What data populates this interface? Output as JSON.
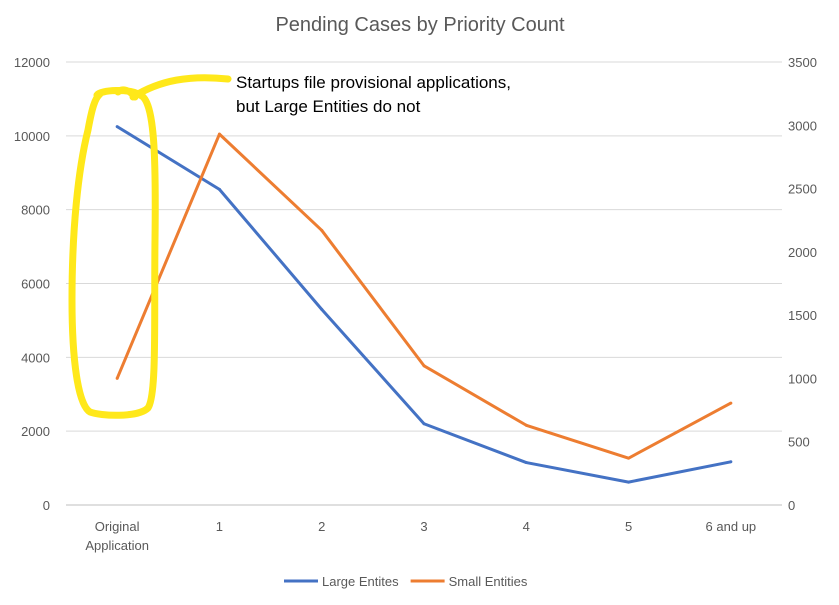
{
  "chart_data": {
    "type": "line",
    "title": "Pending Cases by Priority Count",
    "categories": [
      [
        "Original",
        "Application"
      ],
      [
        "1"
      ],
      [
        "2"
      ],
      [
        "3"
      ],
      [
        "4"
      ],
      [
        "5"
      ],
      [
        "6 and up"
      ]
    ],
    "y_left": {
      "range": [
        0,
        12000
      ],
      "ticks": [
        0,
        2000,
        4000,
        6000,
        8000,
        10000,
        12000
      ]
    },
    "y_right": {
      "range": [
        0,
        3500
      ],
      "ticks": [
        0,
        500,
        1000,
        1500,
        2000,
        2500,
        3000,
        3500
      ]
    },
    "grid": true,
    "legend_position": "bottom",
    "series": [
      {
        "name": "Large Entites",
        "axis": "left",
        "color": "#4472C4",
        "values": [
          10250,
          8550,
          5300,
          2200,
          1150,
          620,
          1170
        ]
      },
      {
        "name": "Small Entities",
        "axis": "right",
        "color": "#ED7D31",
        "values": [
          1000,
          2930,
          2170,
          1100,
          630,
          370,
          805
        ]
      }
    ],
    "annotation": {
      "lines": [
        "Startups file provisional applications,",
        "but Large Entities do not"
      ],
      "highlight_color": "#FFE81A"
    }
  }
}
